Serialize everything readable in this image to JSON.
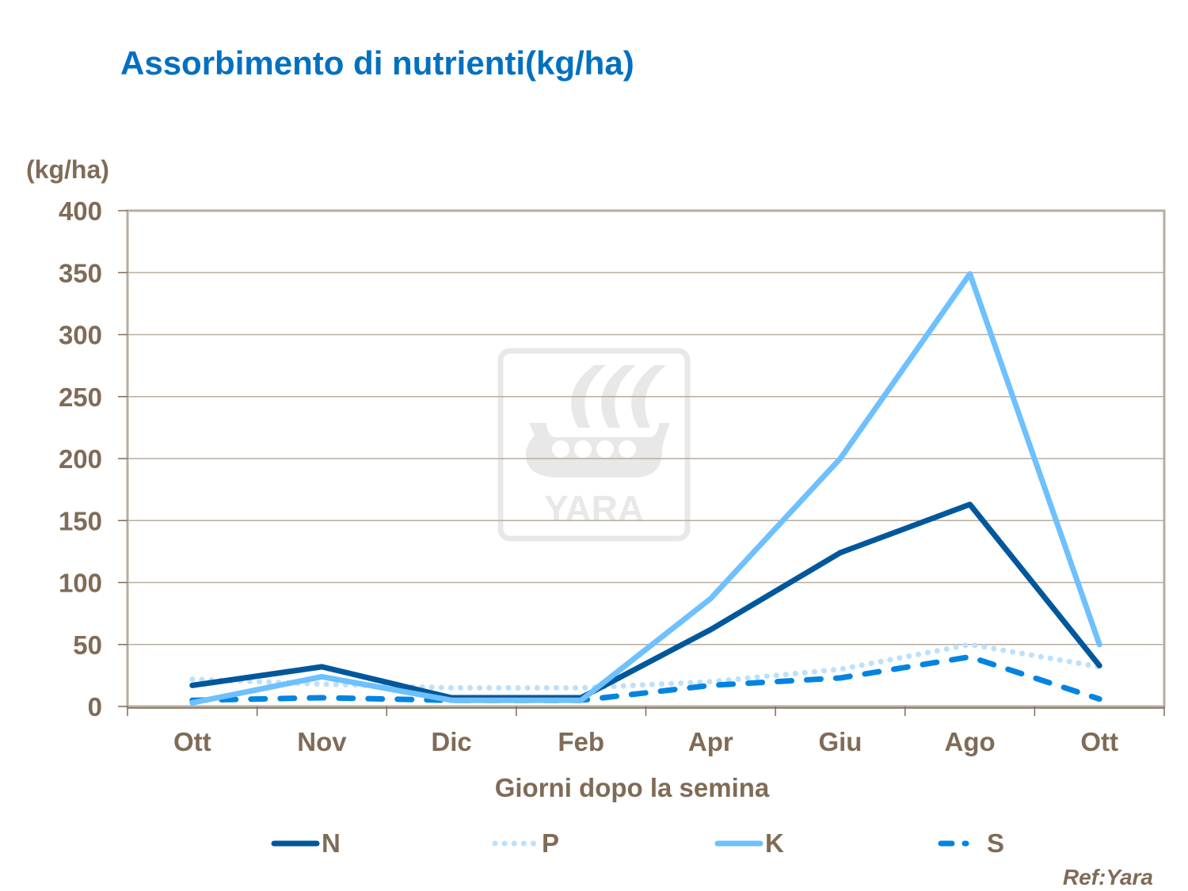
{
  "title": "Assorbimento di nutrienti(kg/ha)",
  "reference": "Ref:Yara",
  "watermark": "YARA",
  "colors": {
    "title": "#0070c0",
    "text": "#7f6b57",
    "axis": "#b7aca0",
    "grid": "#b7aca0",
    "N": "#00579b",
    "P": "#bde0fc",
    "K": "#6ec0ff",
    "S": "#0084e0",
    "watermark": "#e8e8e8"
  },
  "chart_data": {
    "type": "line",
    "title": "Assorbimento di nutrienti(kg/ha)",
    "xlabel": "Giorni dopo la semina",
    "ylabel": "(kg/ha)",
    "ylim": [
      0,
      400
    ],
    "yticks": [
      0,
      50,
      100,
      150,
      200,
      250,
      300,
      350,
      400
    ],
    "grid": true,
    "legend_position": "bottom",
    "categories": [
      "Ott",
      "Nov",
      "Dic",
      "Feb",
      "Apr",
      "Giu",
      "Ago",
      "Ott"
    ],
    "series": [
      {
        "name": "N",
        "style": "solid",
        "values": [
          17,
          32,
          7,
          7,
          62,
          124,
          163,
          33
        ]
      },
      {
        "name": "P",
        "style": "dotted",
        "values": [
          22,
          18,
          15,
          15,
          20,
          30,
          50,
          32
        ]
      },
      {
        "name": "K",
        "style": "solid",
        "values": [
          3,
          24,
          5,
          5,
          87,
          200,
          349,
          50
        ]
      },
      {
        "name": "S",
        "style": "dashed",
        "values": [
          5,
          7,
          5,
          5,
          17,
          23,
          40,
          6
        ]
      }
    ]
  }
}
